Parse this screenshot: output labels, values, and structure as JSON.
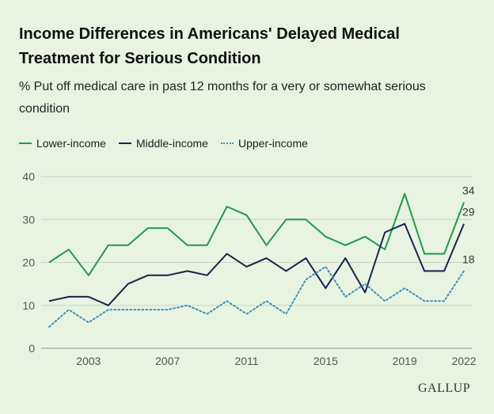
{
  "chart_data": {
    "type": "line",
    "title": "Income Differences in Americans' Delayed Medical Treatment for Serious Condition",
    "subtitle": "% Put off medical care in past 12 months for a very or somewhat serious condition",
    "x": [
      2001,
      2002,
      2003,
      2004,
      2005,
      2006,
      2007,
      2008,
      2009,
      2010,
      2011,
      2012,
      2013,
      2014,
      2015,
      2016,
      2017,
      2018,
      2019,
      2020,
      2021,
      2022
    ],
    "x_ticks": [
      "2003",
      "2007",
      "2011",
      "2015",
      "2019",
      "2022"
    ],
    "x_tick_values": [
      2003,
      2007,
      2011,
      2015,
      2019,
      2022
    ],
    "xlim": [
      2000.6,
      2022.4
    ],
    "ylim": [
      0,
      40
    ],
    "y_ticks": [
      "0",
      "10",
      "20",
      "30",
      "40"
    ],
    "y_tick_values": [
      0,
      10,
      20,
      30,
      40
    ],
    "grid": true,
    "legend_position": "top-left",
    "series": [
      {
        "name": "Lower-income",
        "color": "#1f9a4a",
        "style": "solid",
        "values": [
          20,
          23,
          17,
          24,
          24,
          28,
          28,
          24,
          24,
          33,
          31,
          24,
          30,
          30,
          26,
          24,
          26,
          23,
          36,
          22,
          22,
          34
        ],
        "end_label": "34"
      },
      {
        "name": "Middle-income",
        "color": "#17234f",
        "style": "solid",
        "values": [
          11,
          12,
          12,
          10,
          15,
          17,
          17,
          18,
          17,
          22,
          19,
          21,
          18,
          21,
          14,
          21,
          13,
          27,
          29,
          18,
          18,
          29
        ],
        "end_label": "29"
      },
      {
        "name": "Upper-income",
        "color": "#3f8fb7",
        "style": "dotted",
        "values": [
          5,
          9,
          6,
          9,
          9,
          9,
          9,
          10,
          8,
          11,
          8,
          11,
          8,
          16,
          19,
          12,
          15,
          11,
          14,
          11,
          11,
          18
        ],
        "end_label": "18"
      }
    ]
  },
  "brand": "GALLUP"
}
